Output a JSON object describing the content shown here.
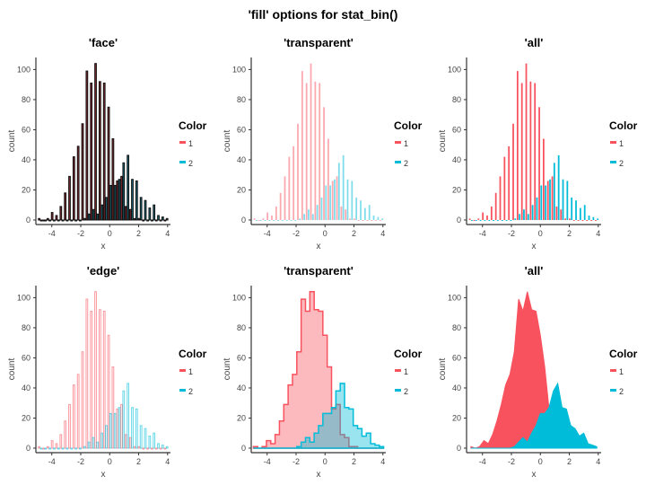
{
  "title": "'fill' options for stat_bin()",
  "colors": {
    "1": "#F8525F",
    "2": "#00BCD8"
  },
  "chart_data": {
    "type": "bar",
    "x_bin_centers": [
      -4.8,
      -4.5,
      -4.2,
      -3.9,
      -3.6,
      -3.3,
      -3.0,
      -2.7,
      -2.4,
      -2.1,
      -1.8,
      -1.5,
      -1.2,
      -0.9,
      -0.6,
      -0.3,
      0.0,
      0.3,
      0.6,
      0.9,
      1.2,
      1.5,
      1.8,
      2.1,
      2.4,
      2.7,
      3.0,
      3.3,
      3.6,
      3.9
    ],
    "series": [
      {
        "name": "1",
        "values": [
          1,
          0,
          1,
          5,
          3,
          9,
          18,
          29,
          42,
          49,
          64,
          99,
          91,
          104,
          92,
          91,
          75,
          54,
          26,
          29,
          9,
          7,
          1,
          1,
          0,
          0,
          0,
          0,
          0,
          0
        ]
      },
      {
        "name": "2",
        "values": [
          0,
          0,
          0,
          0,
          0,
          0,
          0,
          0,
          0,
          0,
          1,
          4,
          7,
          4,
          10,
          15,
          23,
          23,
          27,
          38,
          43,
          27,
          26,
          15,
          13,
          8,
          10,
          3,
          2,
          1
        ]
      }
    ],
    "xlabel": "x",
    "ylabel": "count",
    "xticks": [
      -4,
      -2,
      0,
      2,
      4
    ],
    "yticks": [
      0,
      20,
      40,
      60,
      80,
      100
    ],
    "xlim": [
      -5.1,
      4.2
    ],
    "ylim": [
      -3,
      108
    ],
    "legend": {
      "title": "Color",
      "entries": [
        "1",
        "2"
      ],
      "placement": "right"
    },
    "panels": [
      {
        "title": "'face'",
        "style": "face",
        "geom": "bar"
      },
      {
        "title": "'transparent'",
        "style": "transparent",
        "geom": "bar"
      },
      {
        "title": "'all'",
        "style": "all",
        "geom": "bar"
      },
      {
        "title": "'edge'",
        "style": "edge",
        "geom": "bar"
      },
      {
        "title": "'transparent'",
        "style": "transparent",
        "geom": "step"
      },
      {
        "title": "'all'",
        "style": "all",
        "geom": "area"
      }
    ]
  }
}
